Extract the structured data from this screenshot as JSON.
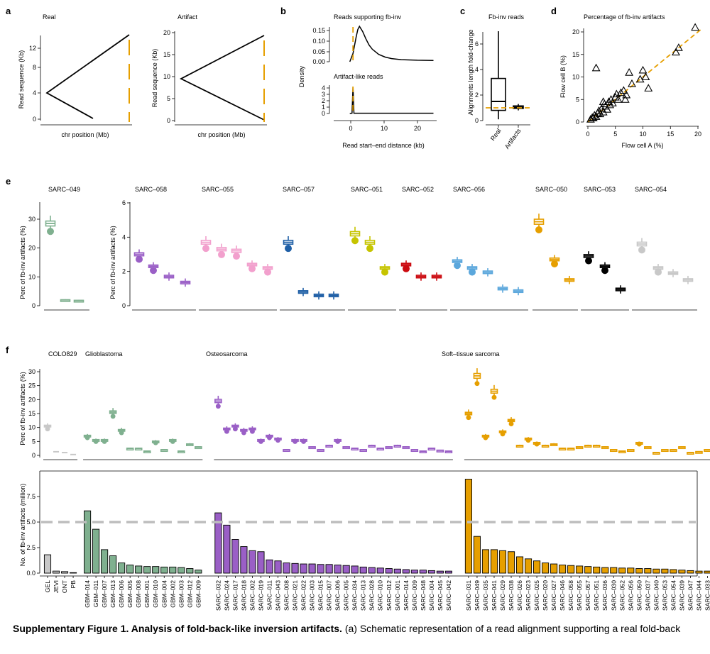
{
  "colors": {
    "orange": "#e69f00",
    "green": "#7fb08f",
    "gray": "#c8c8c8",
    "purple": "#9a5fc6",
    "black": "#000000",
    "pink": "#f2a0cd",
    "blue": "#1f5fa6",
    "lightblue": "#5ba7dc",
    "yellow": "#c6c400",
    "red": "#cc0a10",
    "grayline": "#bdbdbd"
  },
  "panel_a": {
    "letter": "a",
    "real": {
      "title": "Real",
      "ylabel": "Read sequence (Kb)",
      "xlabel": "chr position (Mb)",
      "yticks": [
        "0",
        "4",
        "8",
        "12"
      ]
    },
    "artifact": {
      "title": "Artifact",
      "ylabel": "Read sequence (Kb)",
      "xlabel": "chr position (Mb)",
      "yticks": [
        "0",
        "5",
        "10",
        "15",
        "20"
      ]
    }
  },
  "panel_b": {
    "letter": "b",
    "top_title": "Reads supporting fb-inv",
    "bottom_title": "Artifact-like reads",
    "ylabel": "Density",
    "xlabel": "Read start–end distance (kb)",
    "top_yticks": [
      "0.00",
      "0.05",
      "0.10",
      "0.15"
    ],
    "bottom_yticks": [
      "0",
      "1",
      "2",
      "3",
      "4"
    ],
    "xticks": [
      "0",
      "10",
      "20"
    ]
  },
  "panel_c": {
    "letter": "c",
    "title": "Fb-inv reads",
    "ylabel": "Alignments length fold-change",
    "yticks": [
      "0",
      "2",
      "4",
      "6"
    ],
    "xticks": [
      "Real",
      "Artifacts"
    ]
  },
  "panel_d": {
    "letter": "d",
    "title": "Percentage of fb-inv artifacts",
    "xlabel": "Flow cell A (%)",
    "ylabel": "Flow cell B (%)",
    "ticks": [
      "0",
      "5",
      "10",
      "15",
      "20"
    ]
  },
  "panel_e": {
    "letter": "e",
    "ylabel": "Perc of fb-inv artifacts (%)",
    "left_yticks": [
      "0",
      "10",
      "20",
      "30"
    ],
    "right_yticks": [
      "0",
      "2",
      "4",
      "6"
    ],
    "groups": [
      {
        "label": "SARC–049"
      },
      {
        "label": "SARC–058"
      },
      {
        "label": "SARC–055"
      },
      {
        "label": "SARC–057"
      },
      {
        "label": "SARC–051"
      },
      {
        "label": "SARC–052"
      },
      {
        "label": "SARC–056"
      },
      {
        "label": "SARC–050"
      },
      {
        "label": "SARC–053"
      },
      {
        "label": "SARC–054"
      }
    ]
  },
  "panel_f": {
    "letter": "f",
    "top_ylabel": "Perc of fb-inv artifacts (%)",
    "bottom_ylabel": "No. of fb-inv artifacts (million)",
    "top_yticks": [
      "0",
      "5",
      "10",
      "15",
      "20",
      "25",
      "30"
    ],
    "bottom_yticks": [
      "0.0",
      "2.5",
      "5.0",
      "7.5"
    ],
    "groups": [
      {
        "label": "COLO829"
      },
      {
        "label": "Glioblastoma"
      },
      {
        "label": "Osteosarcoma"
      },
      {
        "label": "Soft–tissue sarcoma"
      }
    ],
    "samples": [
      "GEL",
      "JEVI",
      "ONT",
      "PB",
      "GBM–014",
      "GBM–011",
      "GBM–007",
      "GBM–013",
      "GBM–006",
      "GBM–005",
      "GBM–008",
      "GBM–001",
      "GBM–010",
      "GBM–004",
      "GBM–002",
      "GBM–003",
      "GBM–012",
      "GBM–009",
      "SARC–032",
      "SARC–024",
      "SARC–017",
      "SARC–018",
      "SARC–002",
      "SARC–019",
      "SARC–011",
      "SARC–043",
      "SARC–008",
      "SARC–021",
      "SARC–022",
      "SARC–003",
      "SARC–015",
      "SARC–007",
      "SARC–006",
      "SARC–005",
      "SARC–034",
      "SARC–013",
      "SARC–028",
      "SARC–010",
      "SARC–012",
      "SARC–001",
      "SARC–014",
      "SARC–009",
      "SARC–048",
      "SARC–004",
      "SARC–045",
      "SARC–042",
      "SARC–031",
      "SARC–049",
      "SARC–035",
      "SARC–041",
      "SARC–029",
      "SARC–038",
      "SARC–026",
      "SARC–023",
      "SARC–025",
      "SARC–020",
      "SARC–027",
      "SARC–046",
      "SARC–058",
      "SARC–055",
      "SARC–057",
      "SARC–051",
      "SARC–036",
      "SARC–030",
      "SARC–052",
      "SARC–056",
      "SARC–050",
      "SARC–037",
      "SARC–040",
      "SARC–053",
      "SARC–054",
      "SARC–039",
      "SARC–047",
      "SARC–044",
      "SARC–033"
    ]
  },
  "chart_data": [
    {
      "type": "line",
      "title": "Real",
      "xlabel": "chr position (Mb)",
      "ylabel": "Read sequence (Kb)",
      "ylim": [
        -0.5,
        14
      ],
      "series": [
        {
          "name": "alignment",
          "points": [
            [
              0.0,
              4.2
            ],
            [
              0.65,
              -0.1
            ],
            [
              0.0,
              4.2
            ],
            [
              1.0,
              14
            ]
          ]
        }
      ],
      "annotations": [
        {
          "type": "vline",
          "x": 1.0,
          "style": "dashed",
          "color": "#e69f00",
          "y": [
            0,
            12
          ]
        }
      ]
    },
    {
      "type": "line",
      "title": "Artifact",
      "xlabel": "chr position (Mb)",
      "ylabel": "Read sequence (Kb)",
      "ylim": [
        -0.5,
        20
      ],
      "series": [
        {
          "name": "alignment",
          "points": [
            [
              0.0,
              9.3
            ],
            [
              1.0,
              0.1
            ],
            [
              0.0,
              9.3
            ],
            [
              1.0,
              19.3
            ]
          ]
        }
      ],
      "annotations": [
        {
          "type": "vline",
          "x": 1.0,
          "style": "dashed",
          "color": "#e69f00",
          "y": [
            0,
            18
          ]
        }
      ]
    },
    {
      "type": "area",
      "title": "Reads supporting fb-inv",
      "xlabel": "Read start–end distance (kb)",
      "ylabel": "Density",
      "xlim": [
        -6,
        26
      ],
      "ylim": [
        0,
        0.18
      ],
      "x": [
        -1,
        0,
        1,
        1.5,
        2,
        3,
        4,
        5,
        6,
        8,
        10,
        12,
        15,
        20,
        25
      ],
      "values": [
        0,
        0.04,
        0.12,
        0.155,
        0.17,
        0.145,
        0.11,
        0.08,
        0.06,
        0.035,
        0.022,
        0.015,
        0.01,
        0.007,
        0.006
      ],
      "annotations": [
        {
          "type": "vline",
          "x": 0,
          "style": "dashed",
          "color": "#e69f00"
        }
      ]
    },
    {
      "type": "area",
      "title": "Artifact-like reads",
      "xlabel": "Read start–end distance (kb)",
      "ylabel": "Density",
      "xlim": [
        -6,
        26
      ],
      "ylim": [
        0,
        4.5
      ],
      "x": [
        -1,
        -0.3,
        0,
        0.3,
        1,
        25
      ],
      "values": [
        0,
        0.05,
        4.2,
        0.05,
        0.05,
        0.05
      ],
      "annotations": [
        {
          "type": "vline",
          "x": 0,
          "style": "dashed",
          "color": "#e69f00"
        }
      ]
    },
    {
      "type": "box",
      "title": "Fb-inv reads",
      "ylabel": "Alignments length fold-change",
      "ylim": [
        0,
        7
      ],
      "categories": [
        "Real",
        "Artifacts"
      ],
      "boxes": [
        {
          "min": 0.1,
          "q1": 0.8,
          "median": 1.5,
          "q3": 3.3,
          "max": 7.0
        },
        {
          "min": 0.8,
          "q1": 0.95,
          "median": 1.05,
          "q3": 1.15,
          "max": 1.3
        }
      ],
      "reference_line": 1
    },
    {
      "type": "scatter",
      "title": "Percentage of fb-inv artifacts",
      "xlabel": "Flow cell A (%)",
      "ylabel": "Flow cell B (%)",
      "xlim": [
        0,
        20
      ],
      "ylim": [
        0,
        22
      ],
      "points": [
        [
          0.5,
          0.6
        ],
        [
          0.8,
          1.0
        ],
        [
          1.0,
          0.9
        ],
        [
          1.2,
          1.5
        ],
        [
          1.5,
          1.2
        ],
        [
          1.8,
          2.0
        ],
        [
          2.0,
          2.5
        ],
        [
          2.2,
          1.8
        ],
        [
          2.5,
          3.0
        ],
        [
          2.8,
          2.2
        ],
        [
          3.0,
          4.0
        ],
        [
          3.2,
          3.5
        ],
        [
          3.5,
          2.8
        ],
        [
          3.8,
          4.5
        ],
        [
          4.0,
          3.8
        ],
        [
          4.2,
          5.0
        ],
        [
          4.5,
          4.2
        ],
        [
          5.0,
          5.5
        ],
        [
          5.5,
          5.0
        ],
        [
          6.0,
          6.5
        ],
        [
          6.5,
          7.0
        ],
        [
          7.0,
          6.0
        ],
        [
          7.5,
          11.0
        ],
        [
          8.0,
          8.5
        ],
        [
          9.5,
          9.5
        ],
        [
          10.0,
          11.5
        ],
        [
          10.5,
          10.0
        ],
        [
          11.0,
          7.5
        ],
        [
          1.5,
          12.0
        ],
        [
          16.0,
          15.5
        ],
        [
          16.5,
          16.5
        ],
        [
          19.5,
          21.0
        ],
        [
          2.8,
          4.5
        ],
        [
          6.8,
          5.0
        ],
        [
          5.2,
          6.2
        ]
      ],
      "reference_line": "y = x"
    },
    {
      "type": "box",
      "title": "Panel e",
      "ylabel": "Perc of fb-inv artifacts (%)",
      "series": [
        {
          "name": "SARC–049",
          "color": "#7fb08f",
          "values": [
            28.5,
            2.0,
            1.8
          ]
        },
        {
          "name": "SARC–058",
          "color": "#9a5fc6",
          "values": [
            3.0,
            2.3,
            1.7,
            1.35
          ]
        },
        {
          "name": "SARC–055",
          "color": "#f2a0cd",
          "values": [
            3.7,
            3.3,
            3.2,
            2.4,
            2.2
          ]
        },
        {
          "name": "SARC–057",
          "color": "#1f5fa6",
          "values": [
            3.7,
            0.8,
            0.6,
            0.6
          ]
        },
        {
          "name": "SARC–051",
          "color": "#c6c400",
          "values": [
            4.2,
            3.7,
            2.2
          ]
        },
        {
          "name": "SARC–052",
          "color": "#cc0a10",
          "values": [
            2.4,
            1.7,
            1.7
          ]
        },
        {
          "name": "SARC–056",
          "color": "#5ba7dc",
          "values": [
            2.6,
            2.2,
            1.95,
            1.0,
            0.85
          ]
        },
        {
          "name": "SARC–050",
          "color": "#e69f00",
          "values": [
            4.9,
            2.7,
            1.5
          ]
        },
        {
          "name": "SARC–053",
          "color": "#000000",
          "values": [
            2.9,
            2.3,
            0.95
          ]
        },
        {
          "name": "SARC–054",
          "color": "#c8c8c8",
          "values": [
            3.6,
            2.2,
            1.9,
            1.5
          ]
        }
      ]
    },
    {
      "type": "box",
      "title": "Panel f top",
      "ylabel": "Perc of fb-inv artifacts (%)",
      "ylim": [
        0,
        34
      ],
      "categories": [
        "GEL",
        "JEVI",
        "ONT",
        "PB",
        "GBM–014",
        "GBM–011",
        "GBM–007",
        "GBM–013",
        "GBM–006",
        "GBM–005",
        "GBM–008",
        "GBM–001",
        "GBM–010",
        "GBM–004",
        "GBM–002",
        "GBM–003",
        "GBM–012",
        "GBM–009",
        "SARC–032",
        "SARC–024",
        "SARC–017",
        "SARC–018",
        "SARC–002",
        "SARC–019",
        "SARC–011",
        "SARC–043",
        "SARC–008",
        "SARC–021",
        "SARC–022",
        "SARC–003",
        "SARC–015",
        "SARC–007",
        "SARC–006",
        "SARC–005",
        "SARC–034",
        "SARC–013",
        "SARC–028",
        "SARC–010",
        "SARC–012",
        "SARC–001",
        "SARC–014",
        "SARC–009",
        "SARC–048",
        "SARC–004",
        "SARC–045",
        "SARC–042",
        "SARC–031",
        "SARC–049",
        "SARC–035",
        "SARC–041",
        "SARC–029",
        "SARC–038",
        "SARC–026",
        "SARC–023",
        "SARC–025",
        "SARC–020",
        "SARC–027",
        "SARC–046",
        "SARC–058",
        "SARC–055",
        "SARC–057",
        "SARC–051",
        "SARC–036",
        "SARC–030",
        "SARC–052",
        "SARC–056",
        "SARC–050",
        "SARC–037",
        "SARC–040",
        "SARC–053",
        "SARC–054",
        "SARC–039",
        "SARC–047",
        "SARC–044",
        "SARC–033"
      ],
      "values": [
        10.5,
        1.3,
        1.0,
        0.3,
        7.0,
        5.5,
        5.5,
        15.5,
        9.0,
        2.5,
        2.5,
        1.5,
        5.0,
        2.0,
        5.5,
        1.5,
        4.0,
        3.0,
        19.5,
        9.5,
        10.5,
        9.0,
        9.5,
        5.5,
        7.0,
        6.0,
        2.0,
        5.5,
        5.5,
        3.0,
        2.0,
        3.5,
        5.5,
        3.0,
        2.5,
        2.0,
        3.5,
        2.5,
        3.0,
        3.5,
        3.0,
        2.0,
        1.5,
        2.5,
        1.8,
        1.5,
        15.0,
        28.5,
        7.0,
        23.0,
        8.5,
        12.5,
        3.5,
        6.0,
        4.5,
        3.5,
        4.0,
        2.5,
        2.5,
        3.0,
        3.5,
        3.5,
        3.0,
        2.0,
        1.5,
        2.0,
        4.5,
        3.0,
        1.0,
        2.0,
        2.0,
        3.0,
        1.0,
        1.3,
        2.0
      ]
    },
    {
      "type": "bar",
      "title": "Panel f bottom",
      "ylabel": "No. of fb-inv artifacts (million)",
      "ylim": [
        0,
        9.5
      ],
      "reference_line": 5.0,
      "categories": [
        "GEL",
        "JEVI",
        "ONT",
        "PB",
        "GBM–014",
        "GBM–011",
        "GBM–007",
        "GBM–013",
        "GBM–006",
        "GBM–005",
        "GBM–008",
        "GBM–001",
        "GBM–010",
        "GBM–004",
        "GBM–002",
        "GBM–003",
        "GBM–012",
        "GBM–009",
        "SARC–032",
        "SARC–024",
        "SARC–017",
        "SARC–018",
        "SARC–002",
        "SARC–019",
        "SARC–011",
        "SARC–043",
        "SARC–008",
        "SARC–021",
        "SARC–022",
        "SARC–003",
        "SARC–015",
        "SARC–007",
        "SARC–006",
        "SARC–005",
        "SARC–034",
        "SARC–013",
        "SARC–028",
        "SARC–010",
        "SARC–012",
        "SARC–001",
        "SARC–014",
        "SARC–009",
        "SARC–048",
        "SARC–004",
        "SARC–045",
        "SARC–042",
        "SARC–031",
        "SARC–049",
        "SARC–035",
        "SARC–041",
        "SARC–029",
        "SARC–038",
        "SARC–026",
        "SARC–023",
        "SARC–025",
        "SARC–020",
        "SARC–027",
        "SARC–046",
        "SARC–058",
        "SARC–055",
        "SARC–057",
        "SARC–051",
        "SARC–036",
        "SARC–030",
        "SARC–052",
        "SARC–056",
        "SARC–050",
        "SARC–037",
        "SARC–040",
        "SARC–053",
        "SARC–054",
        "SARC–039",
        "SARC–047",
        "SARC–044",
        "SARC–033"
      ],
      "values": [
        1.8,
        0.2,
        0.15,
        0.05,
        6.1,
        4.3,
        2.3,
        1.7,
        1.0,
        0.8,
        0.7,
        0.65,
        0.65,
        0.6,
        0.6,
        0.55,
        0.45,
        0.3,
        5.9,
        4.7,
        3.3,
        2.6,
        2.2,
        2.1,
        1.3,
        1.2,
        1.0,
        0.95,
        0.9,
        0.9,
        0.85,
        0.85,
        0.8,
        0.75,
        0.7,
        0.6,
        0.55,
        0.5,
        0.45,
        0.4,
        0.35,
        0.3,
        0.3,
        0.25,
        0.2,
        0.2,
        9.2,
        3.6,
        2.3,
        2.3,
        2.2,
        2.1,
        1.6,
        1.4,
        1.2,
        1.0,
        0.9,
        0.8,
        0.75,
        0.7,
        0.65,
        0.6,
        0.55,
        0.55,
        0.5,
        0.5,
        0.45,
        0.45,
        0.4,
        0.4,
        0.35,
        0.3,
        0.25,
        0.2,
        0.2
      ]
    }
  ],
  "caption": {
    "bold": "Supplementary Figure 1. Analysis of fold-back-like inversion artifacts.",
    "text": " (a) Schematic representation of a read alignment supporting a real fold-back"
  }
}
